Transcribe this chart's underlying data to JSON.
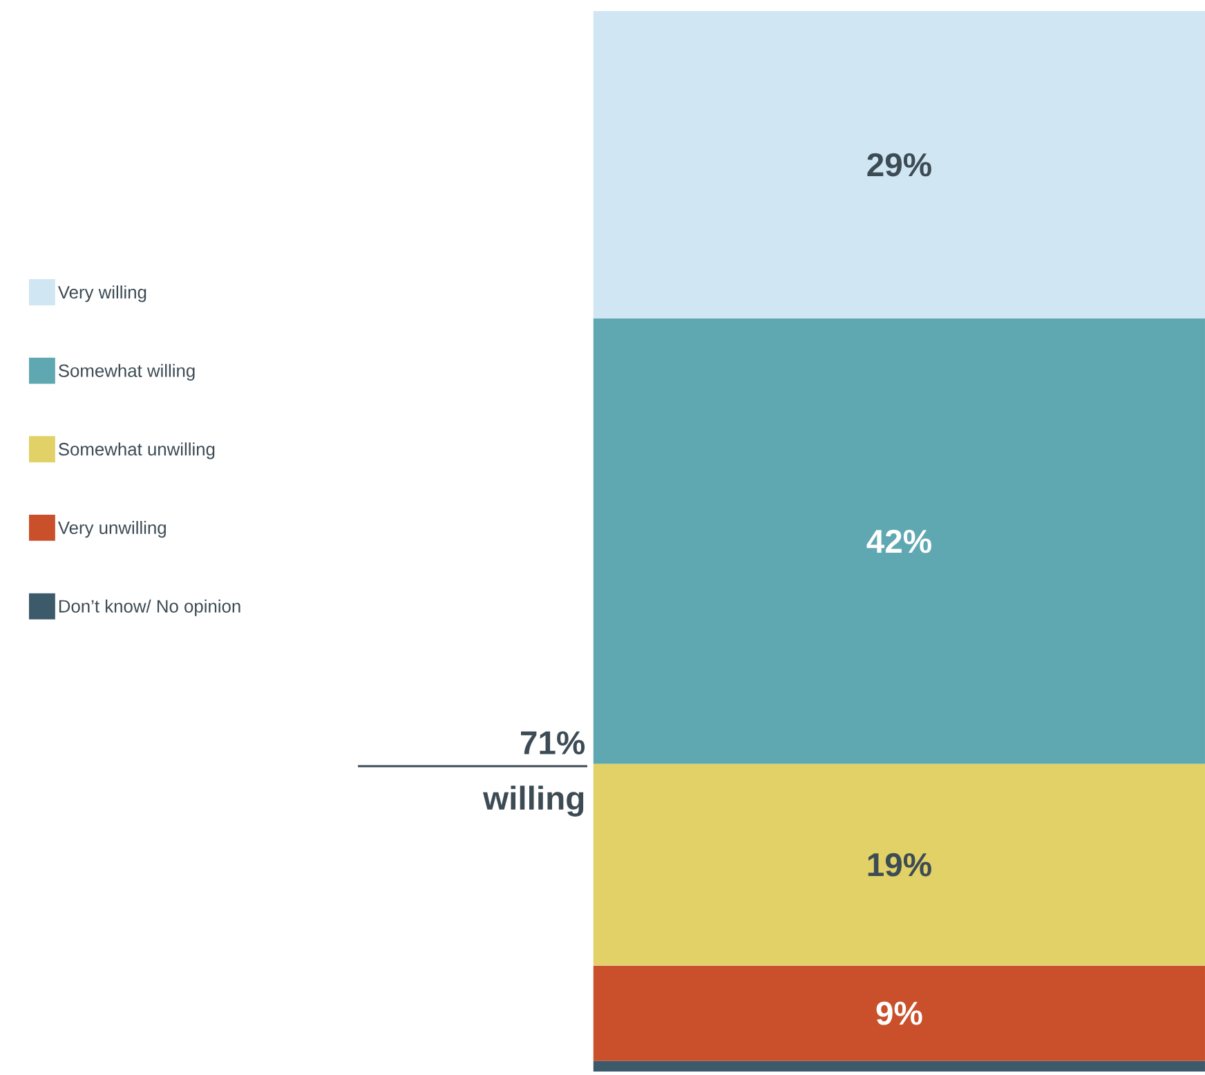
{
  "chart_data": {
    "type": "bar",
    "stacked": true,
    "categories": [
      null
    ],
    "ylim": [
      0,
      100
    ],
    "legend": "left",
    "annotations": [
      "71%",
      "willing"
    ],
    "series": [
      {
        "name": "Don’t know/ No opinion",
        "color": "#3d5a6b",
        "values": [
          1
        ],
        "value_labels": [
          null
        ]
      },
      {
        "name": "Very unwilling",
        "color": "#c9502a",
        "values": [
          9
        ],
        "value_labels": [
          "9%"
        ]
      },
      {
        "name": "Somewhat unwilling",
        "color": "#e1d166",
        "values": [
          19
        ],
        "value_labels": [
          "19%"
        ]
      },
      {
        "name": "Somewhat willing",
        "color": "#5fa8b1",
        "values": [
          42
        ],
        "value_labels": [
          "42%"
        ]
      },
      {
        "name": "Very willing",
        "color": "#d0e6f2",
        "values": [
          29
        ],
        "value_labels": [
          "29%"
        ]
      }
    ]
  }
}
